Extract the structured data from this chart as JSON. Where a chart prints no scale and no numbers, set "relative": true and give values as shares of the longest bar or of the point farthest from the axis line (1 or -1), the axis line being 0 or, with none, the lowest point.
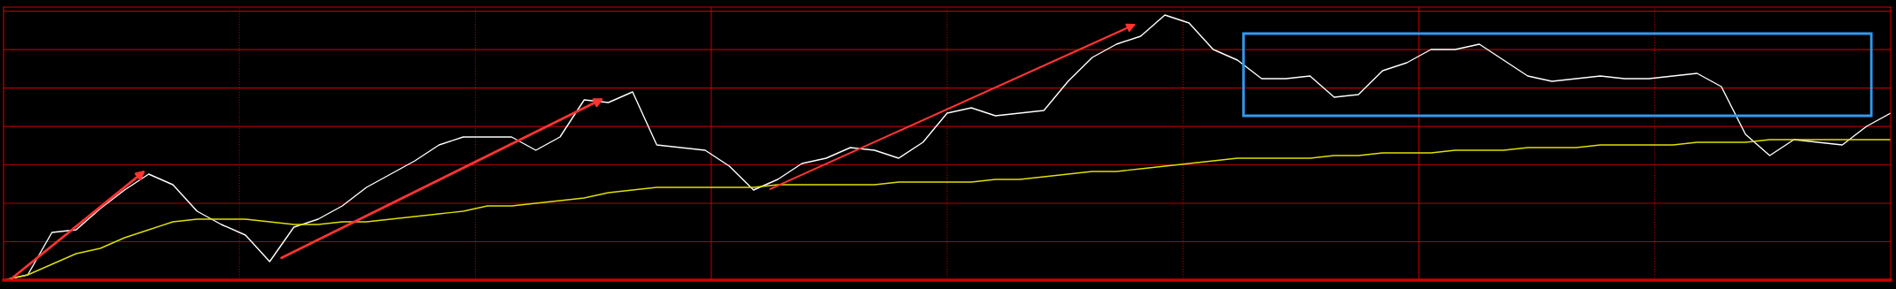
{
  "chart_data": {
    "type": "line",
    "relative": true,
    "grid": true,
    "categories": [
      null,
      null,
      null,
      null,
      null,
      null,
      null,
      null,
      null,
      null,
      null,
      null,
      null,
      null,
      null,
      null,
      null,
      null,
      null,
      null,
      null,
      null,
      null,
      null,
      null,
      null,
      null,
      null,
      null,
      null,
      null,
      null,
      null,
      null,
      null,
      null,
      null,
      null,
      null,
      null,
      null,
      null,
      null,
      null,
      null,
      null,
      null,
      null,
      null,
      null,
      null,
      null,
      null,
      null,
      null,
      null,
      null,
      null,
      null,
      null,
      null,
      null,
      null,
      null,
      null,
      null,
      null,
      null,
      null,
      null,
      null,
      null,
      null,
      null,
      null,
      null,
      null,
      null,
      null
    ],
    "series": [
      {
        "color": "#ffffff",
        "values": [
          0,
          0.02,
          0.18,
          0.19,
          0.27,
          0.34,
          0.4,
          0.36,
          0.26,
          0.21,
          0.17,
          0.07,
          0.2,
          0.23,
          0.28,
          0.35,
          0.4,
          0.45,
          0.51,
          0.54,
          0.54,
          0.54,
          0.49,
          0.54,
          0.68,
          0.67,
          0.71,
          0.51,
          0.5,
          0.49,
          0.43,
          0.34,
          0.38,
          0.44,
          0.46,
          0.5,
          0.49,
          0.46,
          0.52,
          0.63,
          0.65,
          0.62,
          0.63,
          0.64,
          0.75,
          0.84,
          0.89,
          0.92,
          1.0,
          0.97,
          0.87,
          0.83,
          0.76,
          0.76,
          0.77,
          0.69,
          0.7,
          0.79,
          0.82,
          0.87,
          0.87,
          0.89,
          0.83,
          0.77,
          0.75,
          0.76,
          0.77,
          0.76,
          0.76,
          0.77,
          0.78,
          0.73,
          0.55,
          0.47,
          0.53,
          0.52,
          0.51,
          0.58,
          0.63
        ]
      },
      {
        "color": "#e0e000",
        "values": [
          0,
          0.02,
          0.06,
          0.1,
          0.12,
          0.16,
          0.19,
          0.22,
          0.23,
          0.23,
          0.23,
          0.22,
          0.21,
          0.21,
          0.22,
          0.22,
          0.23,
          0.24,
          0.25,
          0.26,
          0.28,
          0.28,
          0.29,
          0.3,
          0.31,
          0.33,
          0.34,
          0.35,
          0.35,
          0.35,
          0.35,
          0.35,
          0.36,
          0.36,
          0.36,
          0.36,
          0.36,
          0.37,
          0.37,
          0.37,
          0.37,
          0.38,
          0.38,
          0.39,
          0.4,
          0.41,
          0.41,
          0.42,
          0.43,
          0.44,
          0.45,
          0.46,
          0.46,
          0.46,
          0.46,
          0.47,
          0.47,
          0.48,
          0.48,
          0.48,
          0.49,
          0.49,
          0.49,
          0.5,
          0.5,
          0.5,
          0.51,
          0.51,
          0.51,
          0.51,
          0.52,
          0.52,
          0.52,
          0.53,
          0.53,
          0.53,
          0.53,
          0.53,
          0.53
        ]
      }
    ]
  }
}
